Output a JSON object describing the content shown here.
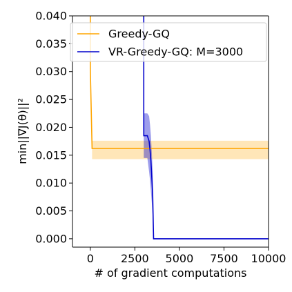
{
  "chart_data": {
    "type": "line",
    "title": "",
    "xlabel": "# of gradient computations",
    "ylabel": "min||∇J(θ)||²",
    "xlim": [
      -1000,
      10000
    ],
    "ylim": [
      -0.0015,
      0.04
    ],
    "xticks": [
      0,
      2500,
      5000,
      7500,
      10000
    ],
    "xtick_labels": [
      "0",
      "2500",
      "5000",
      "7500",
      "10000"
    ],
    "yticks": [
      0.0,
      0.005,
      0.01,
      0.015,
      0.02,
      0.025,
      0.03,
      0.035,
      0.04
    ],
    "ytick_labels": [
      "0.000",
      "0.005",
      "0.010",
      "0.015",
      "0.020",
      "0.025",
      "0.030",
      "0.035",
      "0.040"
    ],
    "grid": false,
    "legend_position": "top-right",
    "series": [
      {
        "name": "Greedy-GQ",
        "color": "#FFA500",
        "x": [
          0,
          0,
          100,
          10000
        ],
        "y": [
          0.045,
          0.0305,
          0.0162,
          0.0162
        ],
        "band_x": [
          100,
          10000
        ],
        "band_lower": [
          0.0143,
          0.0143
        ],
        "band_upper": [
          0.0176,
          0.0176
        ]
      },
      {
        "name": "VR-Greedy-GQ: M=3000",
        "color": "#0000CC",
        "x": [
          3000,
          3000,
          3200,
          3300,
          3350,
          3400,
          3450,
          3500,
          3530,
          3550,
          4000,
          10000
        ],
        "y": [
          0.045,
          0.0185,
          0.0185,
          0.0175,
          0.016,
          0.014,
          0.011,
          0.008,
          0.003,
          0.0,
          0.0,
          0.0
        ],
        "band_x": [
          3000,
          3200,
          3300,
          3350,
          3400,
          3450,
          3500,
          3530,
          3550,
          4000,
          10000
        ],
        "band_lower": [
          0.0145,
          0.0145,
          0.012,
          0.0105,
          0.0085,
          0.0065,
          0.004,
          0.0,
          0.0,
          0.0,
          0.0
        ],
        "band_upper": [
          0.0225,
          0.0225,
          0.022,
          0.0205,
          0.0185,
          0.0155,
          0.012,
          0.006,
          0.0,
          0.0,
          0.0
        ]
      }
    ]
  }
}
